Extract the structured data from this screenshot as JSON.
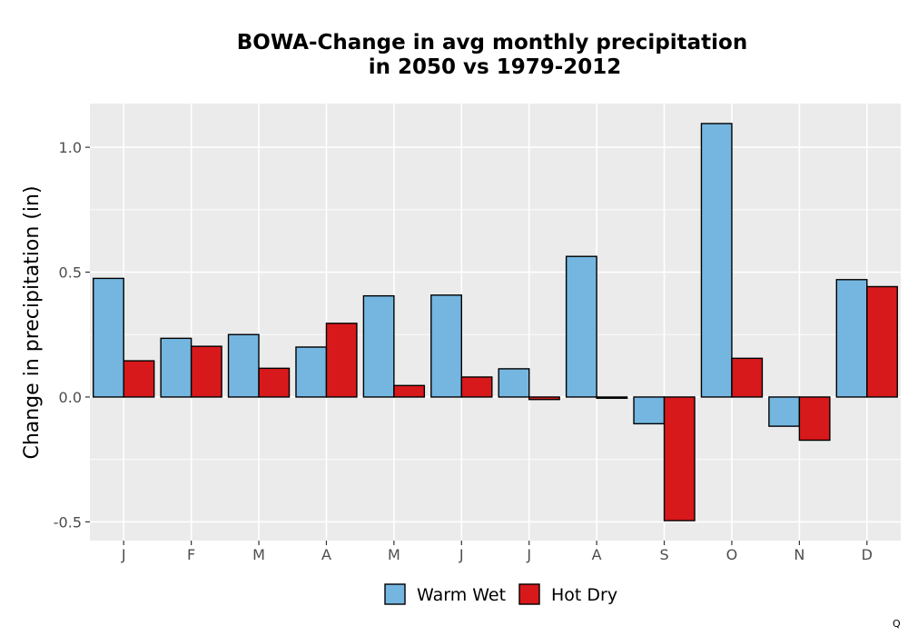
{
  "chart_data": {
    "type": "bar",
    "title_lines": [
      "BOWA-Change in avg monthly precipitation",
      "in 2050 vs 1979-2012"
    ],
    "xlabel": "",
    "ylabel": "Change in precipitation (in)",
    "categories": [
      "J",
      "F",
      "M",
      "A",
      "M",
      "J",
      "J",
      "A",
      "S",
      "O",
      "N",
      "D"
    ],
    "series": [
      {
        "name": "Warm Wet",
        "color": "#74b6e0",
        "values": [
          0.475,
          0.235,
          0.25,
          0.2,
          0.405,
          0.408,
          0.113,
          0.563,
          -0.107,
          1.095,
          -0.117,
          0.47
        ]
      },
      {
        "name": "Hot Dry",
        "color": "#d7191c",
        "values": [
          0.145,
          0.203,
          0.115,
          0.295,
          0.046,
          0.08,
          -0.01,
          -0.005,
          -0.495,
          0.155,
          -0.173,
          0.442
        ]
      }
    ],
    "ylim": [
      -0.575,
      1.175
    ],
    "yticks": [
      -0.5,
      0.0,
      0.5,
      1.0
    ],
    "ytick_labels": [
      "-0.5",
      "0.0",
      "0.5",
      "1.0"
    ],
    "grid": true,
    "panel_background": "#ebebeb",
    "legend_position": "bottom"
  },
  "corner_mark": "Q"
}
